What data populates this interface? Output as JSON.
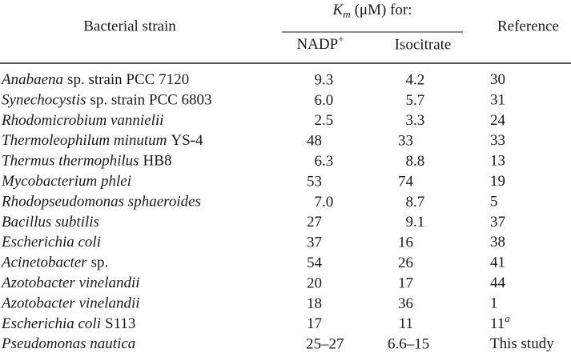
{
  "table": {
    "header": {
      "strain": "Bacterial strain",
      "km": {
        "symbol": "K",
        "subscript": "m",
        "text": "(μM) for:"
      },
      "nadp": {
        "text": "NADP",
        "sup": "+"
      },
      "isocitrate": "Isocitrate",
      "reference": "Reference"
    },
    "rows": [
      {
        "name": "Anabaena",
        "suffix": "sp. strain PCC 7120",
        "nadp": "9.3",
        "isocitrate": "4.2",
        "reference": "30"
      },
      {
        "name": "Synechocystis",
        "suffix": "sp. strain PCC 6803",
        "nadp": "6.0",
        "isocitrate": "5.7",
        "reference": "31"
      },
      {
        "name": "Rhodomicrobium vannielii",
        "nadp": "2.5",
        "isocitrate": "3.3",
        "reference": "24"
      },
      {
        "name": "Thermoleophilum minutum",
        "suffix": "YS-4",
        "nadp": "48",
        "isocitrate": "33",
        "reference": "33"
      },
      {
        "name": "Thermus thermophilus",
        "suffix": "HB8",
        "nadp": "6.3",
        "isocitrate": "8.8",
        "reference": "13"
      },
      {
        "name": "Mycobacterium phlei",
        "nadp": "53",
        "isocitrate": "74",
        "reference": "19"
      },
      {
        "name": "Rhodopseudomonas sphaeroides",
        "nadp": "7.0",
        "isocitrate": "8.7",
        "reference": "5"
      },
      {
        "name": "Bacillus subtilis",
        "nadp": "27",
        "isocitrate": "9.1",
        "reference": "37"
      },
      {
        "name": "Escherichia coli",
        "nadp": "37",
        "isocitrate": "16",
        "reference": "38"
      },
      {
        "name": "Acinetobacter",
        "suffix": "sp.",
        "nadp": "54",
        "isocitrate": "26",
        "reference": "41"
      },
      {
        "name": "Azotobacter vinelandii",
        "nadp": "20",
        "isocitrate": "17",
        "reference": "44"
      },
      {
        "name": "Azotobacter vinelandii",
        "nadp": "18",
        "isocitrate": "36",
        "reference": "1"
      },
      {
        "name": "Escherichia coli",
        "suffix": "S113",
        "nadp": "17",
        "isocitrate": "11",
        "reference": "11",
        "note": "a"
      },
      {
        "name": "Pseudomonas nautica",
        "nadp": "25–27",
        "isocitrate": "6.6–15",
        "reference": "This study"
      }
    ]
  }
}
